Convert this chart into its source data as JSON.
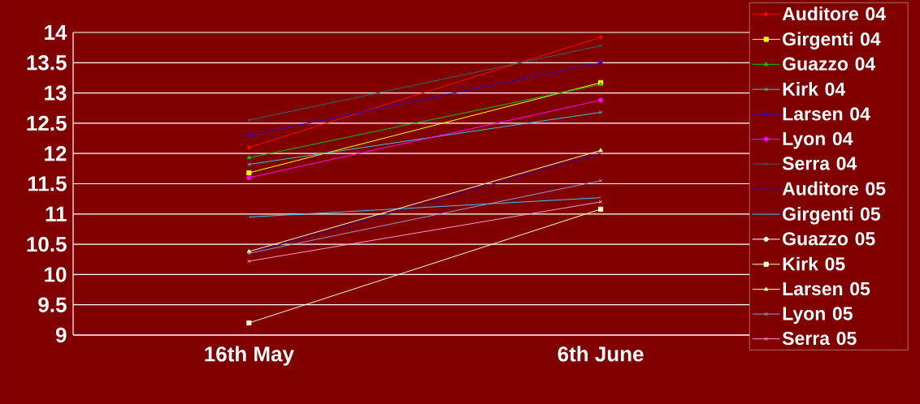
{
  "chart_data": {
    "type": "line",
    "categories": [
      "16th May",
      "6th June"
    ],
    "ylim": [
      9,
      14
    ],
    "yticks": [
      9,
      9.5,
      10,
      10.5,
      11,
      11.5,
      12,
      12.5,
      13,
      13.5,
      14
    ],
    "grid": "y",
    "legend": "right",
    "series": [
      {
        "name": "Auditore 04",
        "color": "#ff0000",
        "marker": "diamond",
        "values": [
          12.1,
          13.92
        ]
      },
      {
        "name": "Girgenti 04",
        "color": "#ffff00",
        "marker": "square",
        "values": [
          11.68,
          13.17
        ]
      },
      {
        "name": "Guazzo 04",
        "color": "#00cc00",
        "marker": "triangle",
        "values": [
          11.93,
          13.14
        ]
      },
      {
        "name": "Kirk 04",
        "color": "#33cccc",
        "marker": "cross",
        "values": [
          11.82,
          12.68
        ]
      },
      {
        "name": "Larsen 04",
        "color": "#3300cc",
        "marker": "diamond",
        "values": [
          12.3,
          13.5
        ]
      },
      {
        "name": "Lyon 04",
        "color": "#ff00ff",
        "marker": "circle",
        "values": [
          11.6,
          12.88
        ]
      },
      {
        "name": "Serra 04",
        "color": "#336666",
        "marker": "cross",
        "values": [
          12.55,
          13.78
        ]
      },
      {
        "name": "Auditore 05",
        "color": "#330099",
        "marker": "none",
        "values": [
          10.35,
          12.0
        ]
      },
      {
        "name": "Girgenti 05",
        "color": "#33ccff",
        "marker": "none",
        "values": [
          10.95,
          11.27
        ]
      },
      {
        "name": "Guazzo 05",
        "color": "#ffffff",
        "marker": "circle",
        "values": [
          null,
          null
        ]
      },
      {
        "name": "Kirk 05",
        "color": "#ffffcc",
        "marker": "square",
        "values": [
          9.2,
          11.08
        ]
      },
      {
        "name": "Larsen 05",
        "color": "#ffff99",
        "marker": "triangle",
        "values": [
          10.38,
          12.05
        ]
      },
      {
        "name": "Lyon 05",
        "color": "#9999cc",
        "marker": "cross",
        "values": [
          10.35,
          11.55
        ]
      },
      {
        "name": "Serra 05",
        "color": "#ff99cc",
        "marker": "cross",
        "values": [
          10.22,
          11.2
        ]
      }
    ]
  }
}
